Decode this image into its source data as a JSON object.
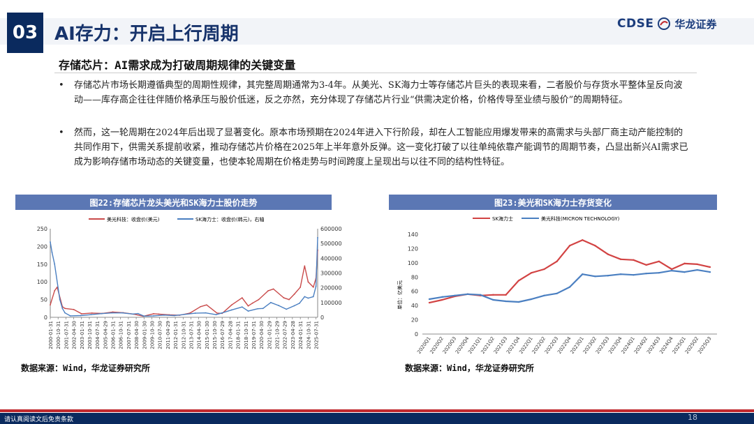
{
  "header": {
    "section_number": "03",
    "title": "AI存力：开启上行周期"
  },
  "logo": {
    "en": "CDSE",
    "cn": "华龙证券",
    "brand_color": "#1c3d7d",
    "accent_red": "#c0282d"
  },
  "subheading": "存储芯片：AI需求成为打破周期规律的关键变量",
  "bullets": [
    {
      "marker": "•",
      "text": "存储芯片市场长期遵循典型的周期性规律，其完整周期通常为3-4年。从美光、SK海力士等存储芯片巨头的表现来看，二者股价与存货水平整体呈反向波动——库存高企往往伴随价格承压与股价低迷，反之亦然，充分体现了存储芯片行业“供需决定价格，价格传导至业绩与股价”的周期特征。"
    },
    {
      "marker": "•",
      "text": "然而，这一轮周期在2024年后出现了显著变化。原本市场预期在2024年进入下行阶段，却在人工智能应用爆发带来的高需求与头部厂商主动产能控制的共同作用下，供需关系提前收紧，推动存储芯片价格在2025年上半年意外反弹。这一变化打破了以往单纯依靠产能调节的周期节奏，凸显出新兴AI需求已成为影响存储市场动态的关键变量，也使本轮周期在价格走势与时间跨度上呈现出与以往不同的结构性特征。"
    }
  ],
  "figures": {
    "fig22": {
      "title": "图22:存储芯片龙头美光和SK海力士股价走势",
      "source": "数据来源：Wind，华龙证券研究所"
    },
    "fig23": {
      "title": "图23:美光和SK海力士存货变化",
      "source": "数据来源：Wind，华龙证券研究所"
    }
  },
  "footer": {
    "disclaimer": "请认真阅读文后免责条款",
    "page": "18"
  },
  "chart_data": [
    {
      "type": "line",
      "series": [
        {
          "name": "美光科技：收盘价(美元)",
          "color": "#c94a4a",
          "axis": "left",
          "x": [
            "2000-01-31",
            "2000-06-30",
            "2000-09-30",
            "2001-03-31",
            "2001-06-30",
            "2002-04-30",
            "2003-01-31",
            "2004-01-31",
            "2005-01-31",
            "2006-01-31",
            "2007-01-31",
            "2008-01-31",
            "2008-12-31",
            "2009-12-31",
            "2010-06-30",
            "2011-06-30",
            "2012-06-30",
            "2013-06-30",
            "2014-06-30",
            "2015-01-31",
            "2016-01-31",
            "2016-07-31",
            "2017-06-30",
            "2018-06-30",
            "2019-01-31",
            "2019-06-30",
            "2020-01-31",
            "2020-12-31",
            "2021-06-30",
            "2022-06-30",
            "2022-12-31",
            "2023-06-30",
            "2024-01-31",
            "2024-06-30",
            "2024-10-31",
            "2025-04-30",
            "2025-07-31",
            "2025-09-30"
          ],
          "values": [
            35,
            75,
            85,
            30,
            25,
            22,
            10,
            12,
            11,
            15,
            13,
            9,
            3,
            10,
            9,
            7,
            6,
            12,
            30,
            35,
            12,
            11,
            35,
            55,
            32,
            40,
            50,
            75,
            80,
            55,
            50,
            65,
            85,
            145,
            100,
            85,
            110,
            190
          ]
        },
        {
          "name": "SK海力士：收盘价(韩元)，右轴",
          "color": "#4a7fc1",
          "axis": "right",
          "x": [
            "2000-01-31",
            "2000-03-31",
            "2000-06-30",
            "2000-12-31",
            "2001-03-31",
            "2001-06-30",
            "2001-12-31",
            "2002-12-31",
            "2003-12-31",
            "2004-12-31",
            "2005-12-31",
            "2006-12-31",
            "2007-12-31",
            "2008-06-30",
            "2009-01-31",
            "2009-12-31",
            "2010-12-31",
            "2011-12-31",
            "2012-12-31",
            "2013-12-31",
            "2014-12-31",
            "2015-12-31",
            "2016-06-30",
            "2017-06-30",
            "2018-06-30",
            "2019-01-31",
            "2019-12-31",
            "2020-06-30",
            "2021-03-31",
            "2021-12-31",
            "2022-09-30",
            "2023-06-30",
            "2023-12-31",
            "2024-06-30",
            "2024-10-31",
            "2025-04-30",
            "2025-07-31",
            "2025-09-30"
          ],
          "values": [
            510000,
            440000,
            360000,
            120000,
            60000,
            30000,
            10000,
            12000,
            18000,
            25000,
            30000,
            30000,
            22000,
            25000,
            8000,
            10000,
            15000,
            12000,
            20000,
            28000,
            30000,
            18000,
            28000,
            50000,
            70000,
            42000,
            58000,
            60000,
            100000,
            80000,
            55000,
            78000,
            95000,
            140000,
            130000,
            140000,
            210000,
            540000
          ]
        }
      ],
      "ylim_left": [
        0,
        250
      ],
      "ylim_right": [
        0,
        600000
      ],
      "y_ticks_left": [
        0,
        50,
        100,
        150,
        200,
        250
      ],
      "y_ticks_right": [
        "0",
        "100000",
        "200000",
        "300000",
        "400000",
        "500000",
        "600000"
      ],
      "tick_labels": [
        "2000-01-31",
        "2000-10-31",
        "2001-07-31",
        "2002-04-30",
        "2003-01-31",
        "2003-10-31",
        "2004-07-31",
        "2005-04-29",
        "2006-01-31",
        "2006-10-31",
        "2007-07-31",
        "2008-04-30",
        "2009-01-30",
        "2009-10-30",
        "2010-07-30",
        "2011-04-29",
        "2012-01-31",
        "2012-10-31",
        "2013-07-31",
        "2014-04-30",
        "2015-01-30",
        "2015-10-30",
        "2016-07-29",
        "2017-04-28",
        "2018-01-31",
        "2018-10-31",
        "2019-07-31",
        "2020-04-30",
        "2021-01-29",
        "2021-10-29",
        "2022-07-29",
        "2023-04-28",
        "2024-01-31",
        "2024-10-31",
        "2025-07-31"
      ],
      "legend_position": "top",
      "grid": false
    },
    {
      "type": "line",
      "categories": [
        "2020Q1",
        "2020Q2",
        "2020Q3",
        "2020Q4",
        "2021Q1",
        "2021Q2",
        "2021Q3",
        "2021Q4",
        "2022Q1",
        "2022Q2",
        "2022Q3",
        "2022Q4",
        "2023Q1",
        "2023Q2",
        "2023Q3",
        "2023Q4",
        "2024Q1",
        "2024Q2",
        "2024Q3",
        "2024Q4",
        "2025Q1",
        "2025Q2",
        "2025Q3"
      ],
      "series": [
        {
          "name": "SK海力士",
          "color": "#d24343",
          "values": [
            44,
            48,
            53,
            56,
            54,
            55,
            55,
            75,
            86,
            91,
            102,
            124,
            132,
            124,
            112,
            105,
            104,
            97,
            102,
            91,
            99,
            98,
            94
          ]
        },
        {
          "name": "美光科技(MICRON TECHNOLOGY)",
          "color": "#4a7fc1",
          "values": [
            49,
            52,
            54,
            56,
            55,
            48,
            46,
            45,
            49,
            54,
            57,
            66,
            84,
            81,
            82,
            84,
            83,
            85,
            86,
            89,
            87,
            90,
            87
          ]
        }
      ],
      "ylabel": "单位：亿美元",
      "ylim": [
        0,
        140
      ],
      "y_ticks": [
        0,
        20,
        40,
        60,
        80,
        100,
        120,
        140
      ],
      "legend_position": "top",
      "grid": false
    }
  ]
}
